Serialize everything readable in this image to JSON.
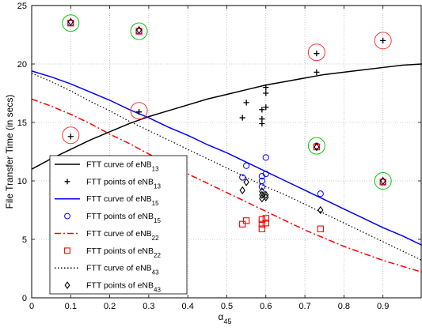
{
  "chart_data": {
    "type": "line+scatter",
    "xlabel": "α",
    "xlabel_sub": "45",
    "ylabel": "File Transfer Time (in secs)",
    "xlim": [
      0,
      1
    ],
    "ylim": [
      0,
      25
    ],
    "xticks": [
      0,
      0.1,
      0.2,
      0.3,
      0.4,
      0.5,
      0.6,
      0.7,
      0.8,
      0.9
    ],
    "yticks": [
      0,
      5,
      10,
      15,
      20,
      25
    ],
    "grid": "dotted",
    "legend_position": "bottom-left",
    "curves": [
      {
        "name": "FTT curve of eNB",
        "sub": "13",
        "color": "#000000",
        "dash": "solid",
        "x": [
          0,
          0.05,
          0.1,
          0.15,
          0.2,
          0.25,
          0.3,
          0.35,
          0.4,
          0.45,
          0.5,
          0.55,
          0.6,
          0.65,
          0.7,
          0.75,
          0.8,
          0.85,
          0.9,
          0.95,
          1.0
        ],
        "y": [
          11.0,
          11.9,
          12.7,
          13.5,
          14.2,
          14.9,
          15.5,
          16.0,
          16.5,
          17.0,
          17.4,
          17.8,
          18.2,
          18.5,
          18.8,
          19.1,
          19.3,
          19.5,
          19.7,
          19.9,
          20.0
        ]
      },
      {
        "name": "FTT curve of eNB",
        "sub": "15",
        "color": "#0000ff",
        "dash": "solid",
        "x": [
          0,
          0.05,
          0.1,
          0.15,
          0.2,
          0.25,
          0.3,
          0.35,
          0.4,
          0.45,
          0.5,
          0.55,
          0.6,
          0.65,
          0.7,
          0.75,
          0.8,
          0.85,
          0.9,
          0.95,
          1.0
        ],
        "y": [
          19.4,
          18.9,
          18.3,
          17.6,
          16.9,
          16.1,
          15.4,
          14.6,
          13.9,
          13.1,
          12.4,
          11.6,
          10.8,
          10.0,
          9.2,
          8.4,
          7.6,
          6.8,
          6.0,
          5.3,
          4.5
        ]
      },
      {
        "name": "FTT curve of eNB",
        "sub": "22",
        "color": "#ff0000",
        "dash": "8,3,2,3",
        "x": [
          0,
          0.05,
          0.1,
          0.15,
          0.2,
          0.25,
          0.3,
          0.35,
          0.4,
          0.45,
          0.5,
          0.55,
          0.6,
          0.65,
          0.7,
          0.75,
          0.8,
          0.85,
          0.9,
          0.95,
          1.0
        ],
        "y": [
          17.0,
          16.4,
          15.7,
          14.9,
          14.0,
          13.2,
          12.3,
          11.5,
          10.6,
          9.8,
          9.0,
          8.2,
          7.4,
          6.6,
          5.8,
          5.1,
          4.4,
          3.8,
          3.2,
          2.7,
          2.2
        ]
      },
      {
        "name": "FTT curve of eNB",
        "sub": "43",
        "color": "#000000",
        "dash": "1.5,2.5",
        "x": [
          0,
          0.05,
          0.1,
          0.15,
          0.2,
          0.25,
          0.3,
          0.35,
          0.4,
          0.45,
          0.5,
          0.55,
          0.6,
          0.65,
          0.7,
          0.75,
          0.8,
          0.85,
          0.9,
          0.95,
          1.0
        ],
        "y": [
          19.2,
          18.5,
          17.7,
          16.8,
          16.0,
          15.1,
          14.3,
          13.5,
          12.7,
          11.9,
          11.1,
          10.3,
          9.5,
          8.8,
          8.0,
          7.2,
          6.4,
          5.6,
          4.8,
          4.0,
          3.2
        ]
      }
    ],
    "points": [
      {
        "name": "FTT points of eNB",
        "sub": "13",
        "marker": "plus",
        "color": "#000000",
        "x": [
          0.1,
          0.275,
          0.54,
          0.55,
          0.59,
          0.59,
          0.59,
          0.6,
          0.6,
          0.6,
          0.73,
          0.73,
          0.9
        ],
        "y": [
          13.8,
          15.9,
          15.4,
          16.7,
          14.9,
          15.3,
          16.1,
          16.3,
          17.5,
          18.0,
          20.9,
          19.3,
          22.0
        ]
      },
      {
        "name": "FTT points of eNB",
        "sub": "15",
        "marker": "circle",
        "color": "#0000ff",
        "x": [
          0.1,
          0.275,
          0.54,
          0.55,
          0.59,
          0.59,
          0.59,
          0.6,
          0.6,
          0.73,
          0.74,
          0.9
        ],
        "y": [
          23.5,
          22.8,
          10.3,
          11.3,
          9.5,
          10.0,
          10.4,
          10.6,
          12.0,
          13.0,
          8.9,
          9.9
        ]
      },
      {
        "name": "FTT points of eNB",
        "sub": "22",
        "marker": "square",
        "color": "#ff0000",
        "x": [
          0.1,
          0.275,
          0.54,
          0.55,
          0.59,
          0.59,
          0.59,
          0.6,
          0.6,
          0.73,
          0.74,
          0.9
        ],
        "y": [
          23.5,
          22.8,
          6.3,
          6.6,
          5.9,
          6.3,
          6.7,
          6.4,
          6.8,
          12.9,
          5.9,
          9.9
        ]
      },
      {
        "name": "FTT points of eNB",
        "sub": "43",
        "marker": "diamond",
        "color": "#000000",
        "x": [
          0.1,
          0.275,
          0.54,
          0.55,
          0.59,
          0.59,
          0.59,
          0.6,
          0.6,
          0.73,
          0.74,
          0.9
        ],
        "y": [
          23.6,
          22.9,
          9.2,
          9.9,
          8.5,
          8.8,
          9.1,
          8.6,
          8.8,
          12.9,
          7.5,
          10.0
        ]
      }
    ],
    "highlight_circles": [
      {
        "x": 0.1,
        "y": 23.5,
        "color": "#00cc00"
      },
      {
        "x": 0.275,
        "y": 22.8,
        "color": "#00cc00"
      },
      {
        "x": 0.73,
        "y": 13.0,
        "color": "#00cc00"
      },
      {
        "x": 0.9,
        "y": 10.0,
        "color": "#00cc00"
      },
      {
        "x": 0.1,
        "y": 13.9,
        "color": "#ff3333"
      },
      {
        "x": 0.275,
        "y": 16.0,
        "color": "#ff3333"
      },
      {
        "x": 0.73,
        "y": 21.0,
        "color": "#ff3333"
      },
      {
        "x": 0.9,
        "y": 22.0,
        "color": "#ff3333"
      }
    ],
    "legend_order": [
      [
        "curve",
        0
      ],
      [
        "points",
        0
      ],
      [
        "curve",
        1
      ],
      [
        "points",
        1
      ],
      [
        "curve",
        2
      ],
      [
        "points",
        2
      ],
      [
        "curve",
        3
      ],
      [
        "points",
        3
      ]
    ]
  }
}
